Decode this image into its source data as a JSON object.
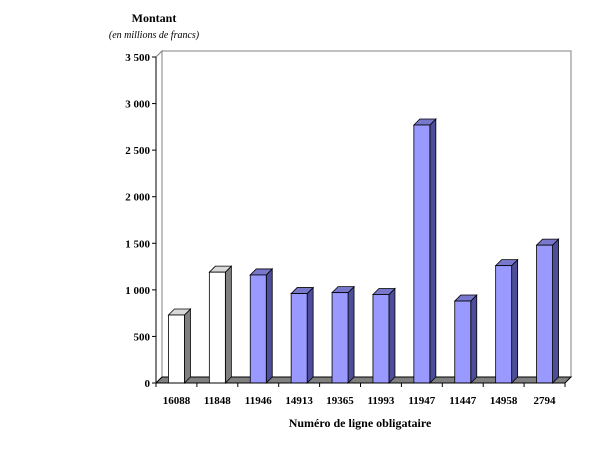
{
  "chart_data": {
    "type": "bar",
    "title": "Montant",
    "subtitle": "(en millions de francs)",
    "xlabel": "Numéro de ligne obligataire",
    "ylabel": "",
    "ylim": [
      0,
      3500
    ],
    "yticks": [
      0,
      500,
      1000,
      1500,
      2000,
      2500,
      3000,
      3500
    ],
    "ytick_labels": [
      "0",
      "500",
      "1 000",
      "1 500",
      "2 000",
      "2 500",
      "3 000",
      "3 500"
    ],
    "categories": [
      "16088",
      "11848",
      "11946",
      "14913",
      "19365",
      "11993",
      "11947",
      "11447",
      "14958",
      "2794"
    ],
    "values": [
      730,
      1190,
      1160,
      960,
      970,
      950,
      2770,
      880,
      1260,
      1480
    ],
    "bar_styles": [
      "white",
      "white",
      "blue",
      "blue",
      "blue",
      "blue",
      "blue",
      "blue",
      "blue",
      "blue"
    ],
    "grid": false,
    "legend": "none",
    "colors": {
      "blue_front": "#9999ff",
      "blue_side": "#4d4d99",
      "blue_top": "#7777cc",
      "white_front": "#ffffff",
      "white_side": "#808080",
      "white_top": "#d9d9d9",
      "floor": "#808080"
    }
  }
}
